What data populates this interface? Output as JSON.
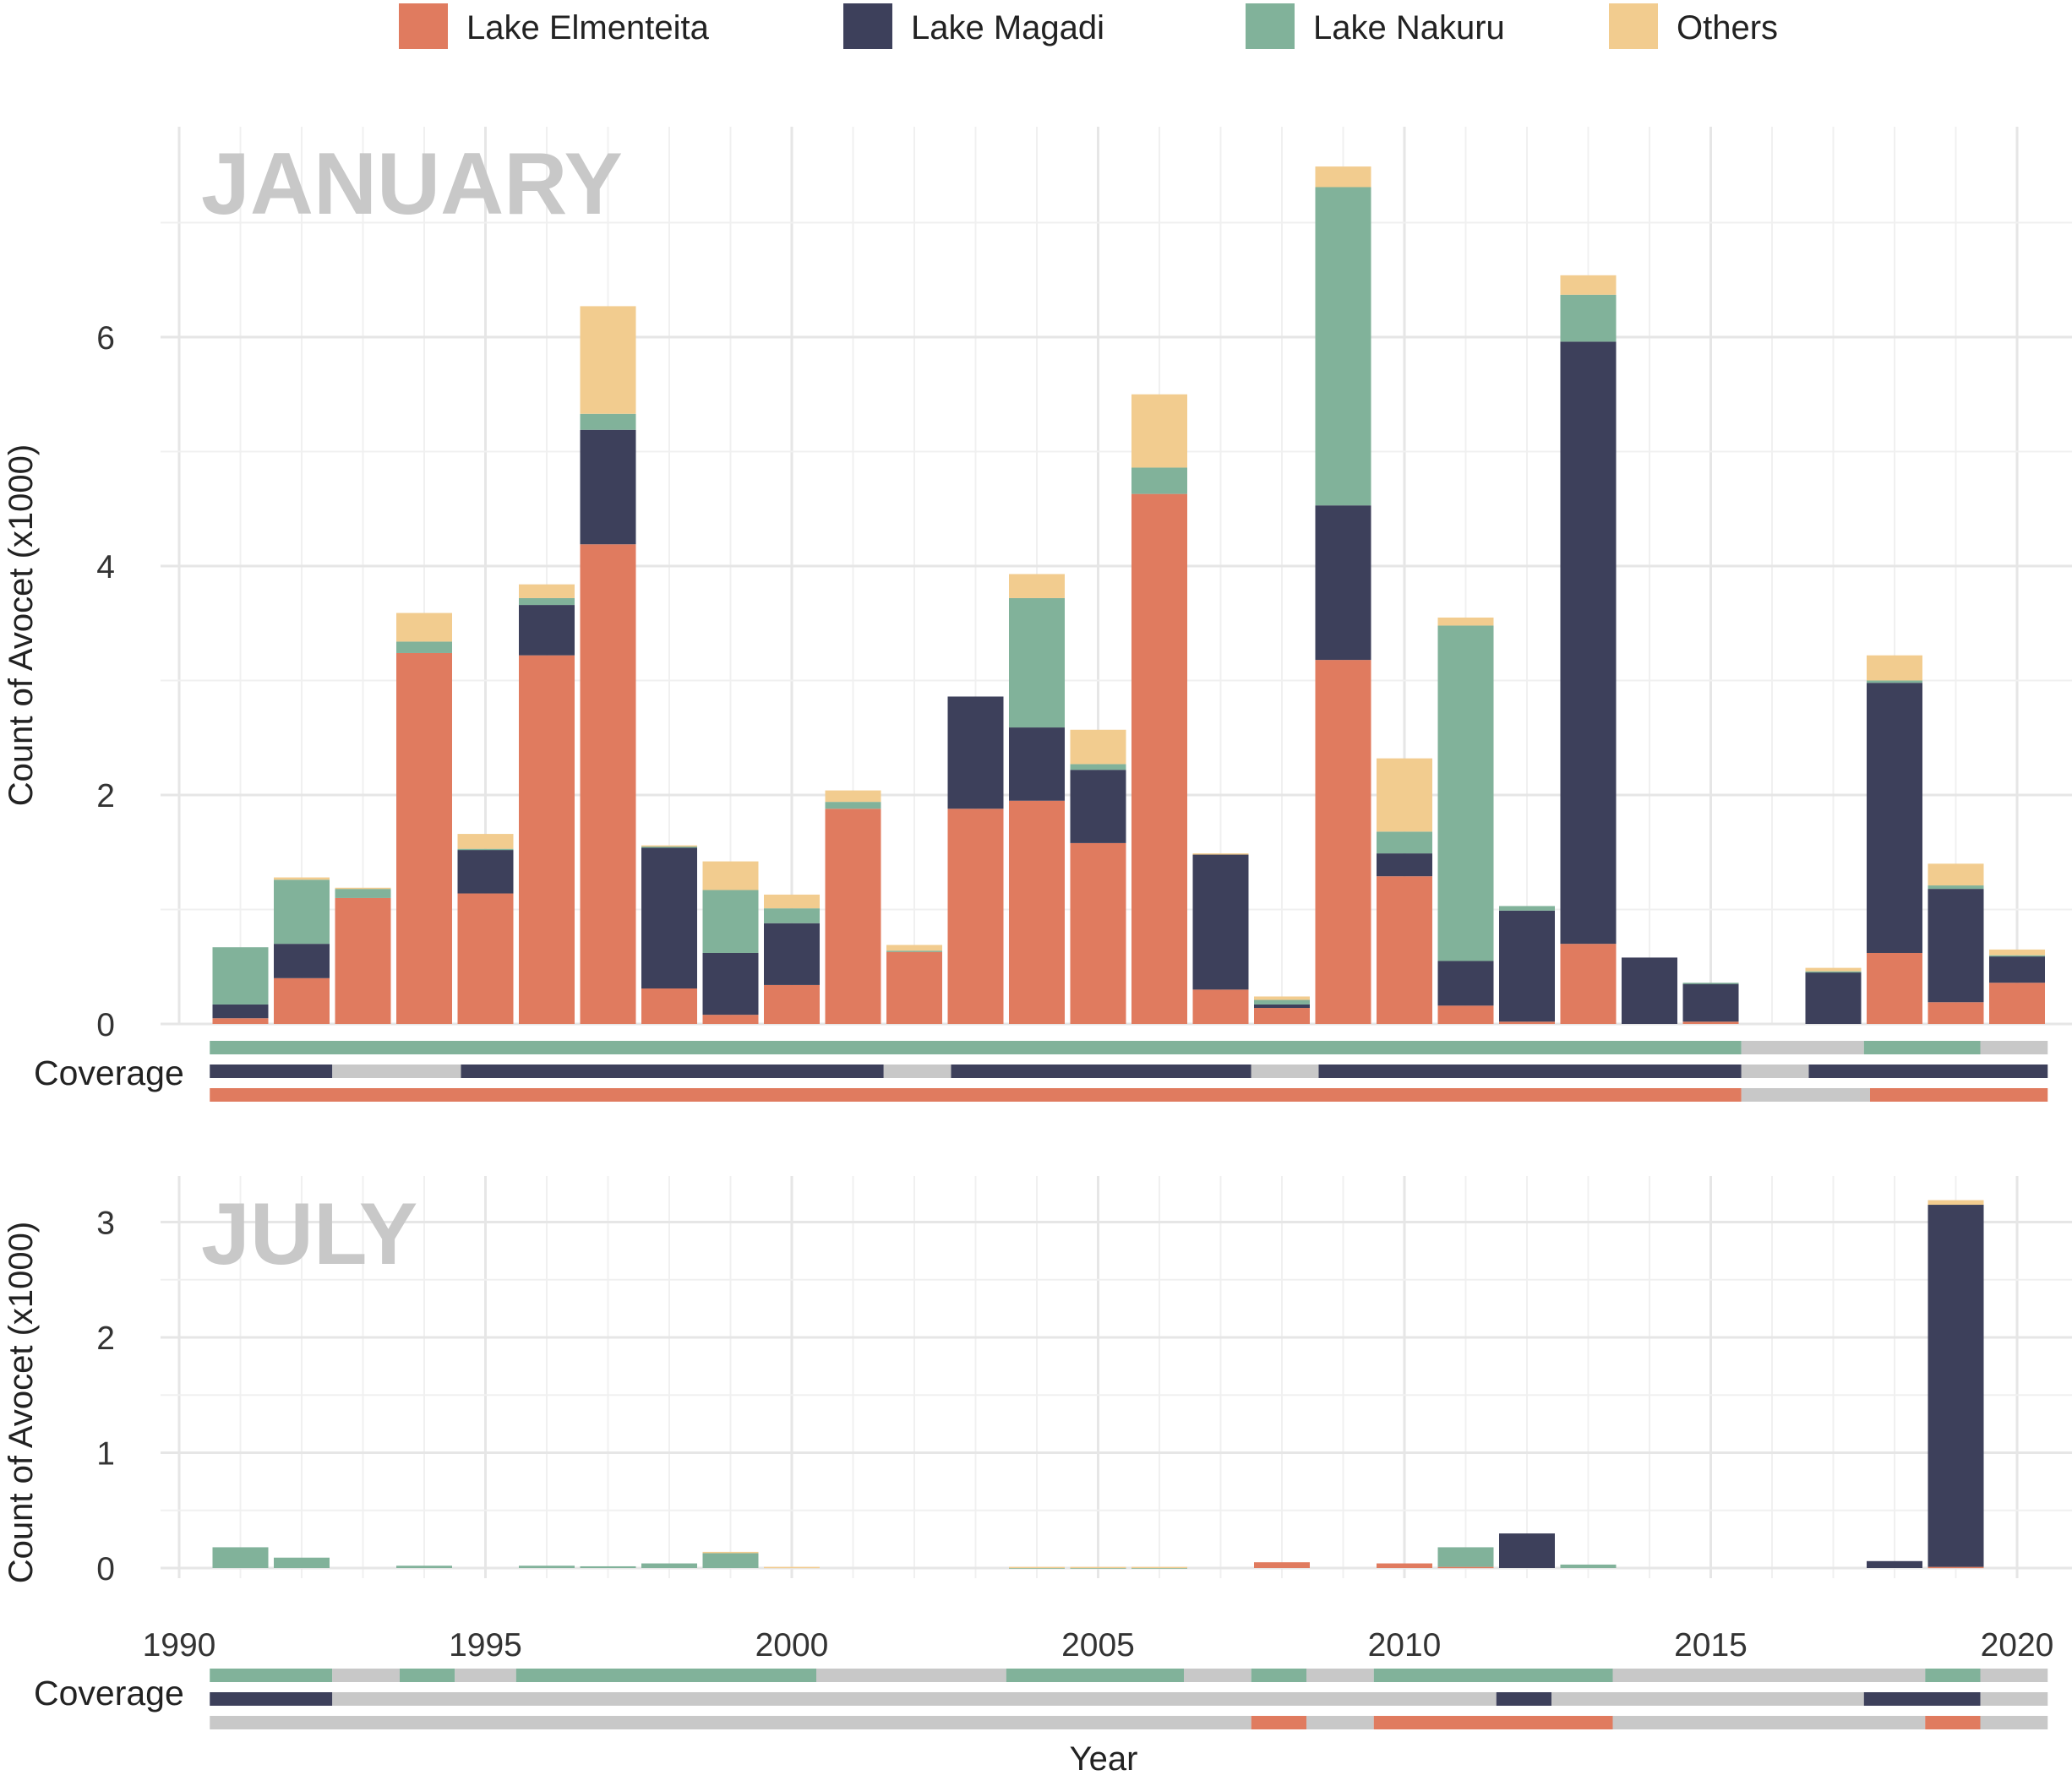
{
  "chart_data": {
    "type": "bar",
    "stacked": true,
    "x_label": "Year",
    "y_label": "Count of Avocet (x1000)",
    "coverage_label": "Coverage",
    "x_ticks": [
      1990,
      1995,
      2000,
      2005,
      2010,
      2015,
      2020
    ],
    "x_range": [
      1990,
      2020.5
    ],
    "colors": {
      "Lake Elmenteita": "#E07B5F",
      "Lake Magadi": "#3D405B",
      "Lake Nakuru": "#81B29A",
      "Others": "#F2CC8F",
      "no_coverage": "#C8C8C8"
    },
    "legend": [
      {
        "name": "Lake Elmenteita",
        "color": "#E07B5F"
      },
      {
        "name": "Lake Magadi",
        "color": "#3D405B"
      },
      {
        "name": "Lake Nakuru",
        "color": "#81B29A"
      },
      {
        "name": "Others",
        "color": "#F2CC8F"
      }
    ],
    "series_order": [
      "Lake Elmenteita",
      "Lake Magadi",
      "Lake Nakuru",
      "Others"
    ],
    "panels": [
      {
        "title": "JANUARY",
        "y_ticks": [
          0,
          2,
          4,
          6
        ],
        "ylim": [
          0,
          7.8
        ],
        "bars": [
          {
            "year": 1991,
            "Lake Elmenteita": 0.05,
            "Lake Magadi": 0.12,
            "Lake Nakuru": 0.5,
            "Others": 0.0
          },
          {
            "year": 1992,
            "Lake Elmenteita": 0.4,
            "Lake Magadi": 0.3,
            "Lake Nakuru": 0.56,
            "Others": 0.02
          },
          {
            "year": 1993,
            "Lake Elmenteita": 1.1,
            "Lake Magadi": 0.0,
            "Lake Nakuru": 0.08,
            "Others": 0.01
          },
          {
            "year": 1994,
            "Lake Elmenteita": 3.24,
            "Lake Magadi": 0.0,
            "Lake Nakuru": 0.1,
            "Others": 0.25
          },
          {
            "year": 1995,
            "Lake Elmenteita": 1.14,
            "Lake Magadi": 0.38,
            "Lake Nakuru": 0.01,
            "Others": 0.13
          },
          {
            "year": 1996,
            "Lake Elmenteita": 3.22,
            "Lake Magadi": 0.44,
            "Lake Nakuru": 0.06,
            "Others": 0.12
          },
          {
            "year": 1997,
            "Lake Elmenteita": 4.19,
            "Lake Magadi": 1.0,
            "Lake Nakuru": 0.14,
            "Others": 0.94
          },
          {
            "year": 1998,
            "Lake Elmenteita": 0.31,
            "Lake Magadi": 1.23,
            "Lake Nakuru": 0.01,
            "Others": 0.01
          },
          {
            "year": 1999,
            "Lake Elmenteita": 0.08,
            "Lake Magadi": 0.54,
            "Lake Nakuru": 0.55,
            "Others": 0.25
          },
          {
            "year": 2000,
            "Lake Elmenteita": 0.34,
            "Lake Magadi": 0.54,
            "Lake Nakuru": 0.13,
            "Others": 0.12
          },
          {
            "year": 2001,
            "Lake Elmenteita": 1.88,
            "Lake Magadi": 0.0,
            "Lake Nakuru": 0.06,
            "Others": 0.1
          },
          {
            "year": 2002,
            "Lake Elmenteita": 0.63,
            "Lake Magadi": 0.0,
            "Lake Nakuru": 0.01,
            "Others": 0.05
          },
          {
            "year": 2003,
            "Lake Elmenteita": 1.88,
            "Lake Magadi": 0.98,
            "Lake Nakuru": 0.0,
            "Others": 0.0
          },
          {
            "year": 2004,
            "Lake Elmenteita": 1.95,
            "Lake Magadi": 0.64,
            "Lake Nakuru": 1.13,
            "Others": 0.21
          },
          {
            "year": 2005,
            "Lake Elmenteita": 1.58,
            "Lake Magadi": 0.64,
            "Lake Nakuru": 0.05,
            "Others": 0.3
          },
          {
            "year": 2006,
            "Lake Elmenteita": 4.63,
            "Lake Magadi": 0.0,
            "Lake Nakuru": 0.23,
            "Others": 0.64
          },
          {
            "year": 2007,
            "Lake Elmenteita": 0.3,
            "Lake Magadi": 1.18,
            "Lake Nakuru": 0.0,
            "Others": 0.01
          },
          {
            "year": 2008,
            "Lake Elmenteita": 0.14,
            "Lake Magadi": 0.03,
            "Lake Nakuru": 0.04,
            "Others": 0.03
          },
          {
            "year": 2009,
            "Lake Elmenteita": 3.18,
            "Lake Magadi": 1.35,
            "Lake Nakuru": 2.78,
            "Others": 0.18
          },
          {
            "year": 2010,
            "Lake Elmenteita": 1.29,
            "Lake Magadi": 0.2,
            "Lake Nakuru": 0.19,
            "Others": 0.64
          },
          {
            "year": 2011,
            "Lake Elmenteita": 0.16,
            "Lake Magadi": 0.39,
            "Lake Nakuru": 2.93,
            "Others": 0.07
          },
          {
            "year": 2012,
            "Lake Elmenteita": 0.02,
            "Lake Magadi": 0.97,
            "Lake Nakuru": 0.04,
            "Others": 0.0
          },
          {
            "year": 2013,
            "Lake Elmenteita": 0.7,
            "Lake Magadi": 5.26,
            "Lake Nakuru": 0.41,
            "Others": 0.17
          },
          {
            "year": 2014,
            "Lake Elmenteita": 0.0,
            "Lake Magadi": 0.58,
            "Lake Nakuru": 0.0,
            "Others": 0.0
          },
          {
            "year": 2015,
            "Lake Elmenteita": 0.02,
            "Lake Magadi": 0.33,
            "Lake Nakuru": 0.01,
            "Others": 0.0
          },
          {
            "year": 2016,
            "Lake Elmenteita": 0.0,
            "Lake Magadi": 0.0,
            "Lake Nakuru": 0.0,
            "Others": 0.0
          },
          {
            "year": 2017,
            "Lake Elmenteita": 0.0,
            "Lake Magadi": 0.45,
            "Lake Nakuru": 0.01,
            "Others": 0.03
          },
          {
            "year": 2018,
            "Lake Elmenteita": 0.62,
            "Lake Magadi": 2.36,
            "Lake Nakuru": 0.02,
            "Others": 0.22
          },
          {
            "year": 2019,
            "Lake Elmenteita": 0.19,
            "Lake Magadi": 0.99,
            "Lake Nakuru": 0.03,
            "Others": 0.19
          },
          {
            "year": 2020,
            "Lake Elmenteita": 0.36,
            "Lake Magadi": 0.23,
            "Lake Nakuru": 0.01,
            "Others": 0.05
          }
        ],
        "coverage": [
          {
            "series": "Lake Nakuru",
            "segments": [
              {
                "from": 1990.5,
                "to": 2015.5,
                "covered": true
              },
              {
                "from": 2015.5,
                "to": 2017.5,
                "covered": false
              },
              {
                "from": 2017.5,
                "to": 2019.4,
                "covered": true
              },
              {
                "from": 2019.4,
                "to": 2020.5,
                "covered": false
              }
            ]
          },
          {
            "series": "Lake Magadi",
            "segments": [
              {
                "from": 1990.5,
                "to": 1992.5,
                "covered": true
              },
              {
                "from": 1992.5,
                "to": 1994.6,
                "covered": false
              },
              {
                "from": 1994.6,
                "to": 2001.5,
                "covered": true
              },
              {
                "from": 2001.5,
                "to": 2002.6,
                "covered": false
              },
              {
                "from": 2002.6,
                "to": 2007.5,
                "covered": true
              },
              {
                "from": 2007.5,
                "to": 2008.6,
                "covered": false
              },
              {
                "from": 2008.6,
                "to": 2015.5,
                "covered": true
              },
              {
                "from": 2015.5,
                "to": 2016.6,
                "covered": false
              },
              {
                "from": 2016.6,
                "to": 2020.5,
                "covered": true
              }
            ]
          },
          {
            "series": "Lake Elmenteita",
            "segments": [
              {
                "from": 1990.5,
                "to": 2015.5,
                "covered": true
              },
              {
                "from": 2015.5,
                "to": 2017.6,
                "covered": false
              },
              {
                "from": 2017.6,
                "to": 2020.5,
                "covered": true
              }
            ]
          }
        ]
      },
      {
        "title": "JULY",
        "y_ticks": [
          0,
          1,
          2,
          3
        ],
        "ylim": [
          -0.07,
          3.27
        ],
        "bars": [
          {
            "year": 1991,
            "Lake Elmenteita": 0.0,
            "Lake Magadi": 0.0,
            "Lake Nakuru": 0.18,
            "Others": 0.0
          },
          {
            "year": 1992,
            "Lake Elmenteita": 0.0,
            "Lake Magadi": 0.0,
            "Lake Nakuru": 0.09,
            "Others": 0.0
          },
          {
            "year": 1994,
            "Lake Elmenteita": 0.0,
            "Lake Magadi": 0.0,
            "Lake Nakuru": 0.02,
            "Others": 0.0
          },
          {
            "year": 1996,
            "Lake Elmenteita": 0.0,
            "Lake Magadi": 0.0,
            "Lake Nakuru": 0.02,
            "Others": 0.0
          },
          {
            "year": 1997,
            "Lake Elmenteita": 0.0,
            "Lake Magadi": 0.0,
            "Lake Nakuru": 0.015,
            "Others": 0.0
          },
          {
            "year": 1998,
            "Lake Elmenteita": 0.0,
            "Lake Magadi": 0.0,
            "Lake Nakuru": 0.04,
            "Others": 0.0
          },
          {
            "year": 1999,
            "Lake Elmenteita": 0.0,
            "Lake Magadi": 0.0,
            "Lake Nakuru": 0.13,
            "Others": 0.01
          },
          {
            "year": 2000,
            "Lake Elmenteita": 0.0,
            "Lake Magadi": 0.0,
            "Lake Nakuru": 0.0,
            "Others": 0.01
          },
          {
            "year": 2004,
            "Lake Elmenteita": 0.0,
            "Lake Magadi": 0.0,
            "Lake Nakuru": 0.005,
            "Others": 0.005
          },
          {
            "year": 2005,
            "Lake Elmenteita": 0.0,
            "Lake Magadi": 0.0,
            "Lake Nakuru": 0.005,
            "Others": 0.005
          },
          {
            "year": 2006,
            "Lake Elmenteita": 0.0,
            "Lake Magadi": 0.0,
            "Lake Nakuru": 0.005,
            "Others": 0.005
          },
          {
            "year": 2008,
            "Lake Elmenteita": 0.05,
            "Lake Magadi": 0.0,
            "Lake Nakuru": 0.0,
            "Others": 0.0
          },
          {
            "year": 2010,
            "Lake Elmenteita": 0.04,
            "Lake Magadi": 0.0,
            "Lake Nakuru": 0.0,
            "Others": 0.0
          },
          {
            "year": 2011,
            "Lake Elmenteita": 0.01,
            "Lake Magadi": 0.0,
            "Lake Nakuru": 0.17,
            "Others": 0.0
          },
          {
            "year": 2012,
            "Lake Elmenteita": 0.0,
            "Lake Magadi": 0.3,
            "Lake Nakuru": 0.0,
            "Others": 0.0
          },
          {
            "year": 2013,
            "Lake Elmenteita": 0.0,
            "Lake Magadi": 0.0,
            "Lake Nakuru": 0.03,
            "Others": 0.0
          },
          {
            "year": 2018,
            "Lake Elmenteita": 0.0,
            "Lake Magadi": 0.06,
            "Lake Nakuru": 0.0,
            "Others": 0.0
          },
          {
            "year": 2019,
            "Lake Elmenteita": 0.01,
            "Lake Magadi": 3.14,
            "Lake Nakuru": 0.0,
            "Others": 0.04
          }
        ],
        "coverage": [
          {
            "series": "Lake Nakuru",
            "segments": [
              {
                "from": 1990.5,
                "to": 1992.5,
                "covered": true
              },
              {
                "from": 1992.5,
                "to": 1993.6,
                "covered": false
              },
              {
                "from": 1993.6,
                "to": 1994.5,
                "covered": true
              },
              {
                "from": 1994.5,
                "to": 1995.5,
                "covered": false
              },
              {
                "from": 1995.5,
                "to": 2000.4,
                "covered": true
              },
              {
                "from": 2000.4,
                "to": 2003.5,
                "covered": false
              },
              {
                "from": 2003.5,
                "to": 2006.4,
                "covered": true
              },
              {
                "from": 2006.4,
                "to": 2007.5,
                "covered": false
              },
              {
                "from": 2007.5,
                "to": 2008.4,
                "covered": true
              },
              {
                "from": 2008.4,
                "to": 2009.5,
                "covered": false
              },
              {
                "from": 2009.5,
                "to": 2013.4,
                "covered": true
              },
              {
                "from": 2013.4,
                "to": 2018.5,
                "covered": false
              },
              {
                "from": 2018.5,
                "to": 2019.4,
                "covered": true
              },
              {
                "from": 2019.4,
                "to": 2020.5,
                "covered": false
              }
            ]
          },
          {
            "series": "Lake Magadi",
            "segments": [
              {
                "from": 1990.5,
                "to": 1992.5,
                "covered": true
              },
              {
                "from": 1992.5,
                "to": 2011.5,
                "covered": false
              },
              {
                "from": 2011.5,
                "to": 2012.4,
                "covered": true
              },
              {
                "from": 2012.4,
                "to": 2017.5,
                "covered": false
              },
              {
                "from": 2017.5,
                "to": 2019.4,
                "covered": true
              },
              {
                "from": 2019.4,
                "to": 2020.5,
                "covered": false
              }
            ]
          },
          {
            "series": "Lake Elmenteita",
            "segments": [
              {
                "from": 1990.5,
                "to": 2007.5,
                "covered": false
              },
              {
                "from": 2007.5,
                "to": 2008.4,
                "covered": true
              },
              {
                "from": 2008.4,
                "to": 2009.5,
                "covered": false
              },
              {
                "from": 2009.5,
                "to": 2013.4,
                "covered": true
              },
              {
                "from": 2013.4,
                "to": 2018.5,
                "covered": false
              },
              {
                "from": 2018.5,
                "to": 2019.4,
                "covered": true
              },
              {
                "from": 2019.4,
                "to": 2020.5,
                "covered": false
              }
            ]
          }
        ]
      }
    ]
  }
}
